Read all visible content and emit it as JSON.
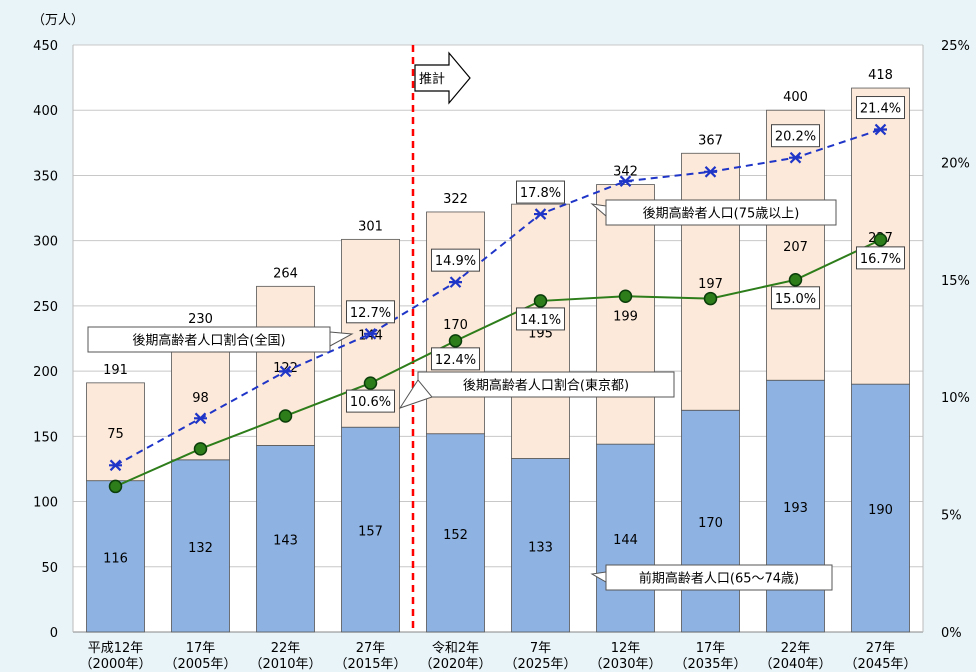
{
  "chart_data": {
    "type": "bar",
    "stacked": true,
    "y_unit_label": "（万人）",
    "ylim": [
      0,
      450
    ],
    "y_ticks": [
      0,
      50,
      100,
      150,
      200,
      250,
      300,
      350,
      400,
      450
    ],
    "y2lim": [
      0,
      25
    ],
    "y2_ticks": [
      "0%",
      "5%",
      "10%",
      "15%",
      "20%",
      "25%"
    ],
    "categories": [
      [
        "平成12年",
        "（2000年）"
      ],
      [
        "17年",
        "（2005年）"
      ],
      [
        "22年",
        "（2010年）"
      ],
      [
        "27年",
        "（2015年）"
      ],
      [
        "令和2年",
        "（2020年）"
      ],
      [
        "7年",
        "（2025年）"
      ],
      [
        "12年",
        "（2030年）"
      ],
      [
        "17年",
        "（2035年）"
      ],
      [
        "22年",
        "（2040年）"
      ],
      [
        "27年",
        "（2045年）"
      ]
    ],
    "series": [
      {
        "name": "前期高齢者人口(65～74歳)",
        "values": [
          116,
          132,
          143,
          157,
          152,
          133,
          144,
          170,
          193,
          190
        ],
        "color": "#8eb3e3"
      },
      {
        "name": "後期高齢者人口(75歳以上)",
        "values": [
          75,
          98,
          122,
          144,
          170,
          195,
          199,
          197,
          207,
          227
        ],
        "color": "#fde9d9"
      }
    ],
    "totals": [
      191,
      230,
      264,
      301,
      322,
      327,
      342,
      367,
      400,
      418
    ],
    "lines": [
      {
        "name": "後期高齢者人口割合(全国)",
        "values": [
          7.1,
          9.1,
          11.1,
          12.7,
          14.9,
          17.8,
          19.2,
          19.6,
          20.2,
          21.4
        ],
        "color": "#1f35c8",
        "style": "dashed",
        "marker": "asterisk",
        "labels": [
          "",
          "",
          "",
          "12.7%",
          "14.9%",
          "17.8%",
          "",
          "",
          "20.2%",
          "21.4%"
        ]
      },
      {
        "name": "後期高齢者人口割合(東京都)",
        "values": [
          6.2,
          7.8,
          9.2,
          10.6,
          12.4,
          14.1,
          14.3,
          14.2,
          15.0,
          16.7
        ],
        "color": "#2e7d1b",
        "style": "solid",
        "marker": "circle",
        "labels": [
          "",
          "",
          "",
          "10.6%",
          "12.4%",
          "14.1%",
          "",
          "",
          "15.0%",
          "16.7%"
        ]
      }
    ],
    "projection_label": "推計",
    "projection_after_index": 3
  },
  "colors": {
    "background": "#e9f4f9",
    "projection_line": "#ff0000"
  }
}
